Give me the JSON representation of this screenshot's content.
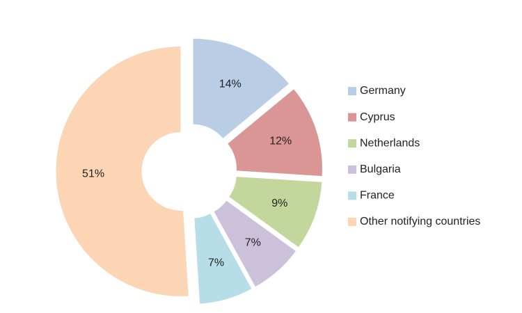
{
  "chart_data": {
    "type": "doughnut",
    "categories": [
      "Germany",
      "Cyprus",
      "Netherlands",
      "Bulgaria",
      "France",
      "Other notifying countries"
    ],
    "values": [
      14,
      12,
      9,
      7,
      7,
      51
    ],
    "value_labels": [
      "14%",
      "12%",
      "9%",
      "7%",
      "7%",
      "51%"
    ],
    "colors": [
      "#b9cde5",
      "#d99694",
      "#c3d69b",
      "#ccc1da",
      "#b7dde8",
      "#fcd5b5"
    ],
    "legend": "right"
  }
}
